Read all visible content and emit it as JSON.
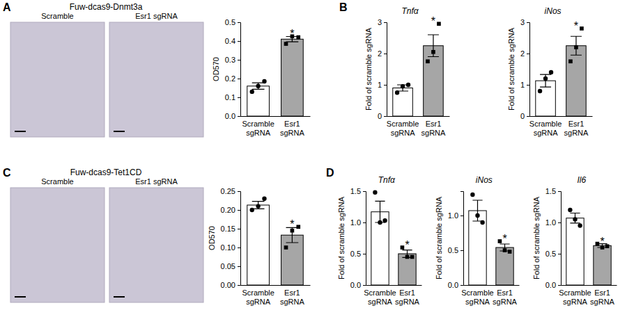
{
  "panels": [
    {
      "letter": "A",
      "title": "Fuw-dcas9-Dnmt3a",
      "images": [
        "Scramble",
        "Esr1 sgRNA"
      ]
    },
    {
      "letter": "B"
    },
    {
      "letter": "C",
      "title": "Fuw-dcas9-Tet1CD",
      "images": [
        "Scramble",
        "Esr1 sgRNA"
      ]
    },
    {
      "letter": "D"
    }
  ],
  "chart_data": [
    {
      "type": "bar",
      "ylabel": "OD570",
      "categories": [
        "Scramble sgRNA",
        "Esr1 sgRNA"
      ],
      "values": [
        0.16,
        0.41
      ],
      "errors": [
        0.017,
        0.014
      ],
      "points": [
        [
          0.13,
          0.16,
          0.185
        ],
        [
          0.385,
          0.425,
          0.42
        ]
      ],
      "colors": [
        "#ffffff",
        "#a6a6a6"
      ],
      "ylim": [
        0,
        0.5
      ],
      "yticks": [
        {
          "value": 0,
          "label": "0.0"
        },
        0.1,
        0.2,
        0.3,
        0.4,
        0.5
      ],
      "annotations": [
        {
          "category": "Esr1 sgRNA",
          "text": "*"
        }
      ]
    },
    {
      "type": "bar",
      "title": "Tnfα",
      "ylabel": "Fold of scramble sgRNA",
      "categories": [
        "Scramble sgRNA",
        "Esr1 sgRNA"
      ],
      "values": [
        0.9,
        2.25
      ],
      "errors": [
        0.1,
        0.35
      ],
      "points": [
        [
          0.75,
          0.95,
          1.0
        ],
        [
          1.75,
          2.05,
          2.95
        ]
      ],
      "colors": [
        "#ffffff",
        "#a6a6a6"
      ],
      "ylim": [
        0,
        3
      ],
      "yticks": [
        0,
        1,
        2,
        3
      ],
      "annotations": [
        {
          "category": "Esr1 sgRNA",
          "text": "*"
        }
      ]
    },
    {
      "type": "bar",
      "title": "iNos",
      "ylabel": "Fold of scramble sgRNA",
      "categories": [
        "Scramble sgRNA",
        "Esr1 sgRNA"
      ],
      "values": [
        1.13,
        2.25
      ],
      "errors": [
        0.2,
        0.3
      ],
      "points": [
        [
          0.8,
          1.2,
          1.4
        ],
        [
          1.75,
          2.2,
          2.8
        ]
      ],
      "colors": [
        "#ffffff",
        "#a6a6a6"
      ],
      "ylim": [
        0,
        3
      ],
      "yticks": [
        0,
        1,
        2,
        3
      ],
      "annotations": [
        {
          "category": "Esr1 sgRNA",
          "text": "*"
        }
      ]
    },
    {
      "type": "bar",
      "ylabel": "OD570",
      "categories": [
        "Scramble sgRNA",
        "Esr1 sgRNA"
      ],
      "values": [
        0.213,
        0.133
      ],
      "errors": [
        0.01,
        0.02
      ],
      "points": [
        [
          0.2,
          0.21,
          0.23
        ],
        [
          0.1,
          0.145,
          0.155
        ]
      ],
      "colors": [
        "#ffffff",
        "#a6a6a6"
      ],
      "ylim": [
        0,
        0.25
      ],
      "yticks": [
        {
          "value": 0,
          "label": "0.00"
        },
        0.05,
        {
          "value": 0.1,
          "label": "0.10"
        },
        0.15,
        {
          "value": 0.2,
          "label": "0.20"
        },
        0.25
      ],
      "annotations": [
        {
          "category": "Esr1 sgRNA",
          "text": "*"
        }
      ]
    },
    {
      "type": "bar",
      "title": "Tnfα",
      "ylabel": "Fold of scramble sgRNA",
      "categories": [
        "Scramble sgRNA",
        "Esr1 sgRNA"
      ],
      "values": [
        1.17,
        0.5
      ],
      "errors": [
        0.17,
        0.06
      ],
      "points": [
        [
          1.48,
          1.0,
          1.03
        ],
        [
          0.6,
          0.45,
          0.45
        ]
      ],
      "colors": [
        "#ffffff",
        "#a6a6a6"
      ],
      "ylim": [
        0,
        1.5
      ],
      "yticks": [
        {
          "value": 0,
          "label": "0.0"
        },
        0.5,
        {
          "value": 1,
          "label": "1.0"
        },
        1.5
      ],
      "annotations": [
        {
          "category": "Esr1 sgRNA",
          "text": "*"
        }
      ]
    },
    {
      "type": "bar",
      "title": "iNos",
      "ylabel": "Fold of scramble sgRNA",
      "categories": [
        "Scramble sgRNA",
        "Esr1 sgRNA"
      ],
      "values": [
        1.07,
        0.54
      ],
      "errors": [
        0.15,
        0.05
      ],
      "points": [
        [
          1.3,
          1.0,
          0.9
        ],
        [
          0.63,
          0.5,
          0.48
        ]
      ],
      "colors": [
        "#ffffff",
        "#a6a6a6"
      ],
      "ylim": [
        0,
        1.35
      ],
      "yticks": [
        {
          "value": 0,
          "label": "0.0"
        },
        0.5,
        {
          "value": 1,
          "label": "1.0"
        }
      ],
      "annotations": [
        {
          "category": "Esr1 sgRNA",
          "text": "*"
        }
      ]
    },
    {
      "type": "bar",
      "title": "Il6",
      "ylabel": "Fold of scramble sgRNA",
      "categories": [
        "Scramble sgRNA",
        "Esr1 sgRNA"
      ],
      "values": [
        1.07,
        0.63
      ],
      "errors": [
        0.08,
        0.03
      ],
      "points": [
        [
          1.2,
          1.05,
          0.95
        ],
        [
          0.66,
          0.6,
          0.62
        ]
      ],
      "colors": [
        "#ffffff",
        "#a6a6a6"
      ],
      "ylim": [
        0,
        1.5
      ],
      "yticks": [
        {
          "value": 0,
          "label": "0.0"
        },
        0.5,
        {
          "value": 1,
          "label": "1.0"
        },
        1.5
      ],
      "annotations": [
        {
          "category": "Esr1 sgRNA",
          "text": "*"
        }
      ]
    }
  ]
}
